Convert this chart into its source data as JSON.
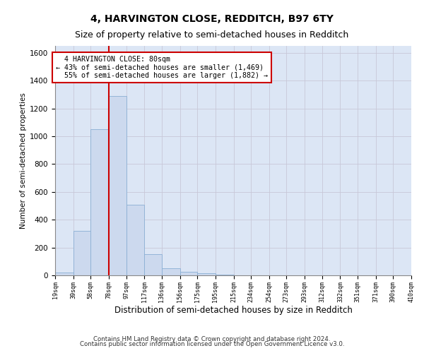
{
  "title1": "4, HARVINGTON CLOSE, REDDITCH, B97 6TY",
  "title2": "Size of property relative to semi-detached houses in Redditch",
  "xlabel": "Distribution of semi-detached houses by size in Redditch",
  "ylabel": "Number of semi-detached properties",
  "property_size": 80,
  "pct_smaller": 43,
  "n_smaller": 1469,
  "pct_larger": 55,
  "n_larger": 1882,
  "bin_edges": [
    19,
    39,
    58,
    78,
    97,
    117,
    136,
    156,
    175,
    195,
    215,
    234,
    254,
    273,
    293,
    312,
    332,
    351,
    371,
    390,
    410
  ],
  "bin_labels": [
    "19sqm",
    "39sqm",
    "58sqm",
    "78sqm",
    "97sqm",
    "117sqm",
    "136sqm",
    "156sqm",
    "175sqm",
    "195sqm",
    "215sqm",
    "234sqm",
    "254sqm",
    "273sqm",
    "293sqm",
    "312sqm",
    "332sqm",
    "351sqm",
    "371sqm",
    "390sqm",
    "410sqm"
  ],
  "counts": [
    20,
    320,
    1050,
    1290,
    510,
    150,
    50,
    25,
    15,
    5,
    0,
    0,
    0,
    0,
    0,
    0,
    0,
    0,
    0,
    0
  ],
  "bar_color": "#ccd9ee",
  "bar_edge_color": "#8aafd4",
  "vline_color": "#cc0000",
  "vline_x": 78,
  "annotation_box_color": "#cc0000",
  "ylim": [
    0,
    1650
  ],
  "yticks": [
    0,
    200,
    400,
    600,
    800,
    1000,
    1200,
    1400,
    1600
  ],
  "footer1": "Contains HM Land Registry data © Crown copyright and database right 2024.",
  "footer2": "Contains public sector information licensed under the Open Government Licence v3.0.",
  "title1_fontsize": 10,
  "title2_fontsize": 9,
  "bg_color": "#ffffff",
  "grid_color": "#c8c8d8",
  "axes_bg_color": "#dce6f5"
}
